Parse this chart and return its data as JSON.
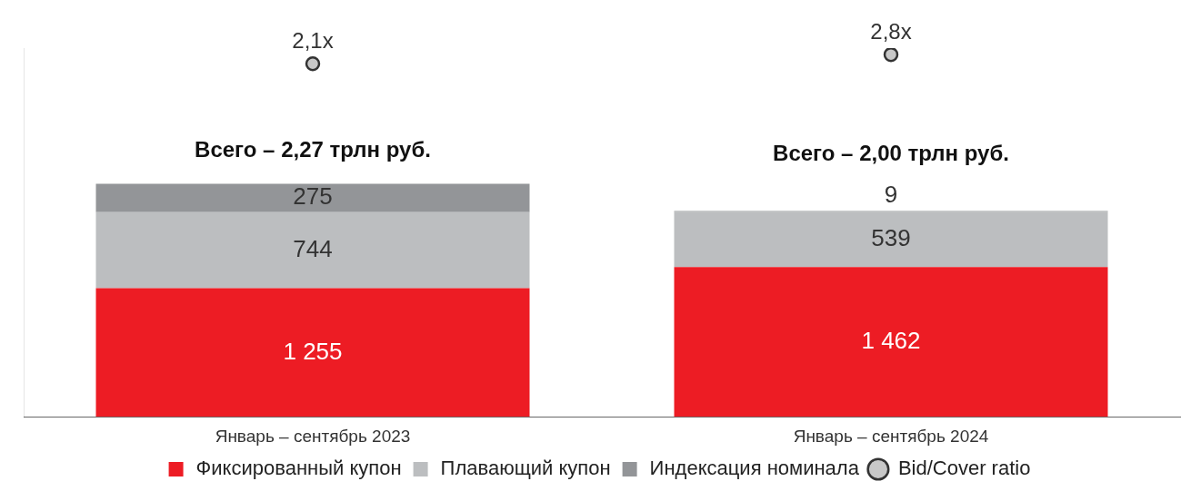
{
  "chart_data": {
    "type": "bar",
    "stacked": true,
    "categories": [
      "Январь – сентябрь 2023",
      "Январь – сентябрь 2024"
    ],
    "series": [
      {
        "name": "Фиксированный купон",
        "color": "#ed1c24",
        "values": [
          1255,
          1462
        ],
        "value_labels": [
          "1 255",
          "1 462"
        ]
      },
      {
        "name": "Плавающий купон",
        "color": "#bcbec0",
        "values": [
          744,
          539
        ]
      },
      {
        "name": "Индексация номинала",
        "color": "#939598",
        "values": [
          275,
          9
        ]
      },
      {
        "name": "Bid/Cover ratio",
        "type": "scatter",
        "axis": "y2",
        "color": "#c8c8c8",
        "values": [
          2.1,
          2.8
        ],
        "value_labels": [
          "2,1x",
          "2,8x"
        ]
      }
    ],
    "ylim": [
      0,
      3600
    ],
    "y2lim": [
      -25,
      3.3
    ],
    "data_labels": true,
    "annotations": [
      "Всего – 2,27 трлн руб.",
      "Всего – 2,00 трлн руб."
    ],
    "grid": false,
    "legend": "bottom",
    "marker": "circle"
  }
}
